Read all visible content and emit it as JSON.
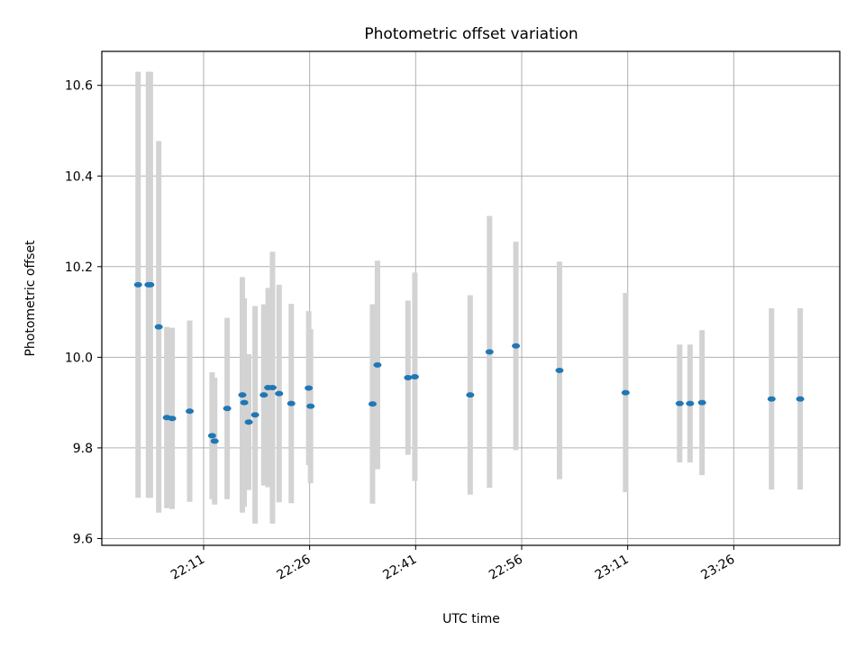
{
  "chart_data": {
    "type": "scatter",
    "title": "Photometric offset variation",
    "xlabel": "UTC time",
    "ylabel": "Photometric offset",
    "x_tick_labels": [
      "22:11",
      "22:26",
      "22:41",
      "22:56",
      "23:11",
      "23:26"
    ],
    "x_tick_minutes": [
      1331,
      1346,
      1361,
      1376,
      1391,
      1406
    ],
    "xlim_minutes": [
      1316.6,
      1421.0
    ],
    "y_tick_labels": [
      "9.6",
      "9.8",
      "10.0",
      "10.2",
      "10.4",
      "10.6"
    ],
    "y_ticks": [
      9.6,
      9.8,
      10.0,
      10.2,
      10.4,
      10.6
    ],
    "ylim": [
      9.585,
      10.675
    ],
    "grid": true,
    "marker_color": "#1f77b4",
    "errorbar_color": "#d3d3d3",
    "points": [
      {
        "t": "22:01:44",
        "y": 10.16,
        "err": 0.47
      },
      {
        "t": "22:03:12",
        "y": 10.16,
        "err": 0.47
      },
      {
        "t": "22:03:28",
        "y": 10.16,
        "err": 0.47
      },
      {
        "t": "22:04:39",
        "y": 10.067,
        "err": 0.41
      },
      {
        "t": "22:05:48",
        "y": 9.867,
        "err": 0.2
      },
      {
        "t": "22:06:33",
        "y": 9.865,
        "err": 0.2
      },
      {
        "t": "22:09:02",
        "y": 9.881,
        "err": 0.2
      },
      {
        "t": "22:12:12",
        "y": 9.827,
        "err": 0.14
      },
      {
        "t": "22:12:34",
        "y": 9.815,
        "err": 0.14
      },
      {
        "t": "22:14:20",
        "y": 9.887,
        "err": 0.2
      },
      {
        "t": "22:16:29",
        "y": 9.917,
        "err": 0.26
      },
      {
        "t": "22:16:45",
        "y": 9.9,
        "err": 0.23
      },
      {
        "t": "22:17:23",
        "y": 9.857,
        "err": 0.15
      },
      {
        "t": "22:18:17",
        "y": 9.873,
        "err": 0.24
      },
      {
        "t": "22:19:31",
        "y": 9.917,
        "err": 0.2
      },
      {
        "t": "22:20:08",
        "y": 9.933,
        "err": 0.22
      },
      {
        "t": "22:20:45",
        "y": 9.933,
        "err": 0.3
      },
      {
        "t": "22:21:41",
        "y": 9.92,
        "err": 0.24
      },
      {
        "t": "22:23:24",
        "y": 9.898,
        "err": 0.22
      },
      {
        "t": "22:25:52",
        "y": 9.932,
        "err": 0.17
      },
      {
        "t": "22:26:08",
        "y": 9.892,
        "err": 0.17
      },
      {
        "t": "22:34:54",
        "y": 9.897,
        "err": 0.22
      },
      {
        "t": "22:35:36",
        "y": 9.983,
        "err": 0.23
      },
      {
        "t": "22:39:55",
        "y": 9.955,
        "err": 0.17
      },
      {
        "t": "22:40:53",
        "y": 9.957,
        "err": 0.23
      },
      {
        "t": "22:48:43",
        "y": 9.917,
        "err": 0.22
      },
      {
        "t": "22:51:27",
        "y": 10.012,
        "err": 0.3
      },
      {
        "t": "22:55:11",
        "y": 10.025,
        "err": 0.23
      },
      {
        "t": "23:01:21",
        "y": 9.971,
        "err": 0.24
      },
      {
        "t": "23:10:42",
        "y": 9.922,
        "err": 0.22
      },
      {
        "t": "23:18:21",
        "y": 9.898,
        "err": 0.13
      },
      {
        "t": "23:19:49",
        "y": 9.898,
        "err": 0.13
      },
      {
        "t": "23:21:31",
        "y": 9.9,
        "err": 0.16
      },
      {
        "t": "23:31:21",
        "y": 9.908,
        "err": 0.2
      },
      {
        "t": "23:35:24",
        "y": 9.908,
        "err": 0.2
      }
    ]
  }
}
